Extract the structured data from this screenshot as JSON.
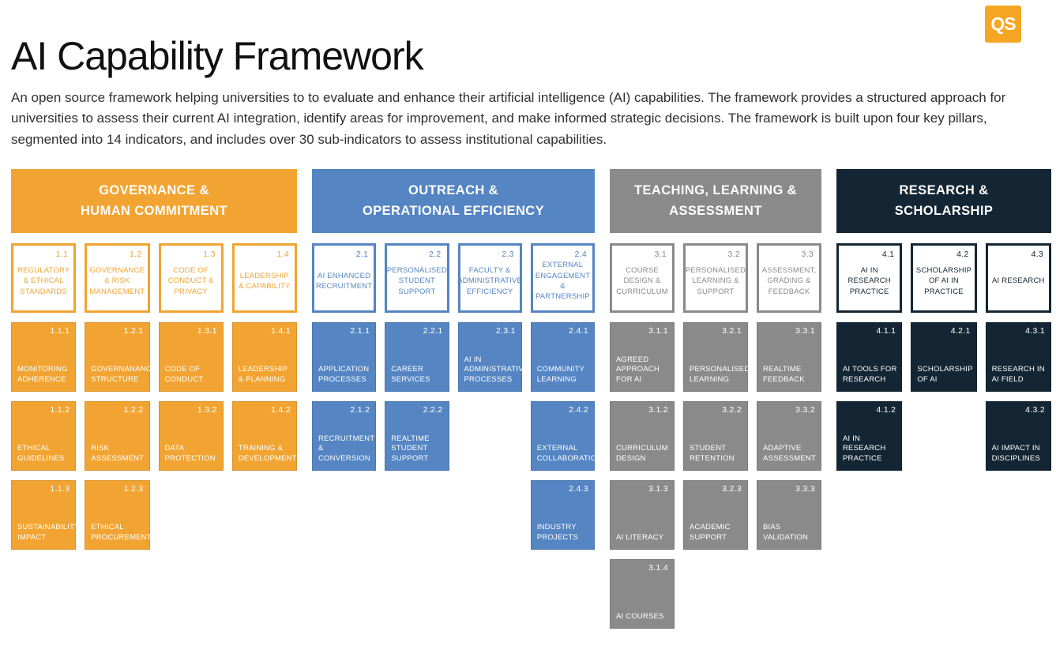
{
  "logo": {
    "text": "QS",
    "color": "#F5A623"
  },
  "header": {
    "title": "AI Capability Framework",
    "description": "An open source framework helping universities to to evaluate and enhance their artificial intelligence (AI) capabilities. The framework provides a structured approach for universities to assess their current AI integration, identify areas for improvement, and make informed strategic decisions. The framework is built upon four key pillars, segmented into 14 indicators, and includes over 30 sub-indicators to assess institutional capabilities."
  },
  "pillars": [
    {
      "id": "governance-human-commitment",
      "color": "#F2A432",
      "title_line1": "GOVERNANCE &",
      "title_line2": "HUMAN COMMITMENT",
      "columns": [
        {
          "indicator": {
            "num": "1.1",
            "label": "REGULATORY & ETHICAL STANDARDS"
          },
          "subs": [
            {
              "num": "1.1.1",
              "label": "MONITORING ADHERENCE"
            },
            {
              "num": "1.1.2",
              "label": "ETHICAL GUIDELINES"
            },
            {
              "num": "1.1.3",
              "label": "SUSTAINABILITY IMPACT"
            }
          ]
        },
        {
          "indicator": {
            "num": "1.2",
            "label": "GOVERNANCE & RISK MANAGEMENT"
          },
          "subs": [
            {
              "num": "1.2.1",
              "label": "GOVERNANANCE STRUCTURE"
            },
            {
              "num": "1.2.2",
              "label": "RISK ASSESSMENT"
            },
            {
              "num": "1.2.3",
              "label": "ETHICAL PROCUREMENT"
            }
          ]
        },
        {
          "indicator": {
            "num": "1.3",
            "label": "CODE OF CONDUCT & PRIVACY"
          },
          "subs": [
            {
              "num": "1.3.1",
              "label": "CODE OF CONDUCT"
            },
            {
              "num": "1.3.2",
              "label": "DATA PROTECTION"
            }
          ]
        },
        {
          "indicator": {
            "num": "1.4",
            "label": "LEADERSHIP & CAPABILITY"
          },
          "subs": [
            {
              "num": "1.4.1",
              "label": "LEADERSHIP & PLANNING"
            },
            {
              "num": "1.4.2",
              "label": "TRAINING & DEVELOPMENT"
            }
          ]
        }
      ]
    },
    {
      "id": "outreach-operational-efficiency",
      "color": "#5585C3",
      "title_line1": "OUTREACH &",
      "title_line2": "OPERATIONAL EFFICIENCY",
      "columns": [
        {
          "indicator": {
            "num": "2.1",
            "label": "AI ENHANCED RECRUITMENT"
          },
          "subs": [
            {
              "num": "2.1.1",
              "label": "APPLICATION PROCESSES"
            },
            {
              "num": "2.1.2",
              "label": "RECRUITMENT & CONVERSION"
            }
          ]
        },
        {
          "indicator": {
            "num": "2.2",
            "label": "PERSONALISED STUDENT SUPPORT"
          },
          "subs": [
            {
              "num": "2.2.1",
              "label": "CAREER SERVICES"
            },
            {
              "num": "2.2.2",
              "label": "REALTIME STUDENT SUPPORT"
            }
          ]
        },
        {
          "indicator": {
            "num": "2.3",
            "label": "FACULTY & ADMINISTRATIVE EFFICIENCY"
          },
          "subs": [
            {
              "num": "2.3.1",
              "label": "AI IN ADMINISTRATIVE PROCESSES"
            }
          ]
        },
        {
          "indicator": {
            "num": "2.4",
            "label": "EXTERNAL ENGAGEMENT & PARTNERSHIP"
          },
          "subs": [
            {
              "num": "2.4.1",
              "label": "COMMUNITY LEARNING"
            },
            {
              "num": "2.4.2",
              "label": "EXTERNAL COLLABORATION"
            },
            {
              "num": "2.4.3",
              "label": "INDUSTRY PROJECTS"
            }
          ]
        }
      ]
    },
    {
      "id": "teaching-learning-assessment",
      "color": "#8A8A8A",
      "title_line1": "TEACHING, LEARNING &",
      "title_line2": "ASSESSMENT",
      "columns": [
        {
          "indicator": {
            "num": "3.1",
            "label": "COURSE DESIGN & CURRICULUM"
          },
          "subs": [
            {
              "num": "3.1.1",
              "label": "AGREED APPROACH FOR AI"
            },
            {
              "num": "3.1.2",
              "label": "CURRICULUM DESIGN"
            },
            {
              "num": "3.1.3",
              "label": "AI LITERACY"
            },
            {
              "num": "3.1.4",
              "label": "AI COURSES"
            }
          ]
        },
        {
          "indicator": {
            "num": "3.2",
            "label": "PERSONALISED LEARNING & SUPPORT"
          },
          "subs": [
            {
              "num": "3.2.1",
              "label": "PERSONALISED LEARNING"
            },
            {
              "num": "3.2.2",
              "label": "STUDENT RETENTION"
            },
            {
              "num": "3.2.3",
              "label": "ACADEMIC SUPPORT"
            }
          ]
        },
        {
          "indicator": {
            "num": "3.3",
            "label": "ASSESSMENT, GRADING & FEEDBACK"
          },
          "subs": [
            {
              "num": "3.3.1",
              "label": "REALTIME FEEDBACK"
            },
            {
              "num": "3.3.2",
              "label": "ADAPTIVE ASSESSMENT"
            },
            {
              "num": "3.3.3",
              "label": "BIAS VALIDATION"
            }
          ]
        }
      ]
    },
    {
      "id": "research-scholarship",
      "color": "#142634",
      "title_line1": "RESEARCH &",
      "title_line2": "SCHOLARSHIP",
      "columns": [
        {
          "indicator": {
            "num": "4.1",
            "label": "AI IN RESEARCH PRACTICE"
          },
          "subs": [
            {
              "num": "4.1.1",
              "label": "AI TOOLS FOR RESEARCH"
            },
            {
              "num": "4.1.2",
              "label": "AI IN RESEARCH PRACTICE"
            }
          ]
        },
        {
          "indicator": {
            "num": "4.2",
            "label": "SCHOLARSHIP OF AI IN PRACTICE"
          },
          "subs": [
            {
              "num": "4.2.1",
              "label": "SCHOLARSHIP OF AI"
            }
          ]
        },
        {
          "indicator": {
            "num": "4.3",
            "label": "AI RESEARCH"
          },
          "subs": [
            {
              "num": "4.3.1",
              "label": "RESEARCH IN AI FIELD"
            },
            {
              "num": "4.3.2",
              "label": "AI IMPACT IN DISCIPLINES"
            }
          ]
        }
      ]
    }
  ]
}
